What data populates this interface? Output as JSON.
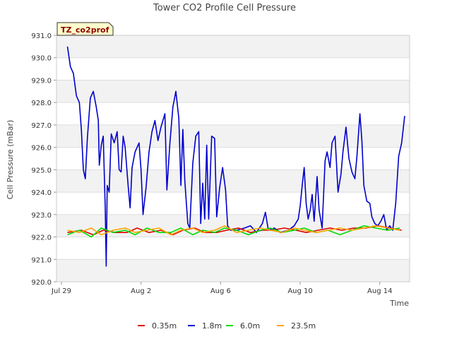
{
  "chart_data": {
    "type": "line",
    "title": "Tower CO2 Profile Cell Pressure",
    "tag": "TZ_co2prof",
    "xlabel": "Time",
    "ylabel": "Cell Pressure (mBar)",
    "ylim": [
      920.0,
      931.0
    ],
    "yticks": [
      "920.0",
      "921.0",
      "922.0",
      "923.0",
      "924.0",
      "925.0",
      "926.0",
      "927.0",
      "928.0",
      "929.0",
      "930.0",
      "931.0"
    ],
    "xlim_days": [
      -0.25,
      17.5
    ],
    "xticks": [
      {
        "label": "Jul 29",
        "day": 0
      },
      {
        "label": "Aug 2",
        "day": 4
      },
      {
        "label": "Aug 6",
        "day": 8
      },
      {
        "label": "Aug 10",
        "day": 12
      },
      {
        "label": "Aug 14",
        "day": 16
      }
    ],
    "grid": true,
    "legend_position": "bottom",
    "series": [
      {
        "name": "0.35m",
        "color": "#dd0000",
        "points": [
          [
            0.3,
            922.2
          ],
          [
            1.0,
            922.3
          ],
          [
            1.6,
            922.1
          ],
          [
            2.1,
            922.3
          ],
          [
            2.7,
            922.2
          ],
          [
            3.3,
            922.2
          ],
          [
            3.8,
            922.4
          ],
          [
            4.4,
            922.2
          ],
          [
            5.0,
            922.3
          ],
          [
            5.6,
            922.1
          ],
          [
            6.1,
            922.3
          ],
          [
            6.7,
            922.4
          ],
          [
            7.2,
            922.2
          ],
          [
            7.8,
            922.2
          ],
          [
            8.3,
            922.3
          ],
          [
            8.9,
            922.4
          ],
          [
            9.5,
            922.2
          ],
          [
            10.1,
            922.3
          ],
          [
            10.6,
            922.3
          ],
          [
            11.2,
            922.4
          ],
          [
            11.8,
            922.3
          ],
          [
            12.3,
            922.2
          ],
          [
            12.9,
            922.3
          ],
          [
            13.5,
            922.4
          ],
          [
            14.1,
            922.3
          ],
          [
            14.7,
            922.4
          ],
          [
            15.3,
            922.4
          ],
          [
            15.9,
            922.5
          ],
          [
            16.5,
            922.4
          ],
          [
            17.1,
            922.3
          ]
        ]
      },
      {
        "name": "1.8m",
        "color": "#0000cc",
        "points": [
          [
            0.3,
            930.5
          ],
          [
            0.45,
            929.6
          ],
          [
            0.6,
            929.3
          ],
          [
            0.75,
            928.3
          ],
          [
            0.9,
            928.0
          ],
          [
            1.0,
            926.8
          ],
          [
            1.1,
            925.0
          ],
          [
            1.2,
            924.6
          ],
          [
            1.3,
            926.4
          ],
          [
            1.45,
            928.2
          ],
          [
            1.6,
            928.5
          ],
          [
            1.75,
            927.8
          ],
          [
            1.85,
            927.2
          ],
          [
            1.9,
            925.2
          ],
          [
            2.0,
            926.1
          ],
          [
            2.1,
            926.5
          ],
          [
            2.2,
            923.3
          ],
          [
            2.25,
            920.7
          ],
          [
            2.3,
            924.3
          ],
          [
            2.4,
            924.0
          ],
          [
            2.5,
            926.6
          ],
          [
            2.65,
            926.2
          ],
          [
            2.8,
            926.7
          ],
          [
            2.9,
            925.0
          ],
          [
            3.0,
            924.9
          ],
          [
            3.1,
            926.5
          ],
          [
            3.2,
            926.0
          ],
          [
            3.35,
            924.3
          ],
          [
            3.45,
            923.3
          ],
          [
            3.55,
            925.1
          ],
          [
            3.7,
            925.8
          ],
          [
            3.9,
            926.2
          ],
          [
            4.0,
            925.0
          ],
          [
            4.1,
            923.0
          ],
          [
            4.25,
            924.2
          ],
          [
            4.4,
            925.8
          ],
          [
            4.55,
            926.7
          ],
          [
            4.7,
            927.2
          ],
          [
            4.85,
            926.3
          ],
          [
            5.0,
            926.9
          ],
          [
            5.2,
            927.5
          ],
          [
            5.3,
            924.1
          ],
          [
            5.45,
            926.2
          ],
          [
            5.6,
            927.8
          ],
          [
            5.75,
            928.5
          ],
          [
            5.9,
            927.3
          ],
          [
            6.0,
            924.3
          ],
          [
            6.1,
            926.8
          ],
          [
            6.2,
            924.5
          ],
          [
            6.35,
            922.6
          ],
          [
            6.45,
            922.4
          ],
          [
            6.6,
            925.3
          ],
          [
            6.75,
            926.5
          ],
          [
            6.9,
            926.7
          ],
          [
            7.0,
            922.6
          ],
          [
            7.1,
            924.4
          ],
          [
            7.2,
            922.8
          ],
          [
            7.3,
            926.1
          ],
          [
            7.4,
            922.8
          ],
          [
            7.55,
            926.5
          ],
          [
            7.7,
            926.4
          ],
          [
            7.8,
            922.9
          ],
          [
            7.95,
            924.2
          ],
          [
            8.1,
            925.1
          ],
          [
            8.25,
            924.1
          ],
          [
            8.35,
            922.5
          ],
          [
            8.5,
            922.3
          ],
          [
            8.8,
            922.3
          ],
          [
            9.2,
            922.4
          ],
          [
            9.5,
            922.5
          ],
          [
            9.8,
            922.2
          ],
          [
            10.1,
            922.6
          ],
          [
            10.25,
            923.1
          ],
          [
            10.4,
            922.3
          ],
          [
            10.7,
            922.4
          ],
          [
            11.0,
            922.2
          ],
          [
            11.4,
            922.3
          ],
          [
            11.7,
            922.5
          ],
          [
            11.9,
            922.8
          ],
          [
            12.0,
            923.4
          ],
          [
            12.1,
            924.3
          ],
          [
            12.2,
            925.1
          ],
          [
            12.3,
            923.5
          ],
          [
            12.4,
            922.8
          ],
          [
            12.5,
            923.2
          ],
          [
            12.6,
            923.9
          ],
          [
            12.7,
            922.7
          ],
          [
            12.85,
            924.7
          ],
          [
            12.95,
            923.2
          ],
          [
            13.1,
            922.4
          ],
          [
            13.25,
            925.4
          ],
          [
            13.35,
            925.8
          ],
          [
            13.5,
            925.1
          ],
          [
            13.6,
            926.2
          ],
          [
            13.75,
            926.5
          ],
          [
            13.9,
            924.0
          ],
          [
            14.05,
            924.8
          ],
          [
            14.15,
            925.8
          ],
          [
            14.3,
            926.9
          ],
          [
            14.45,
            925.5
          ],
          [
            14.6,
            924.9
          ],
          [
            14.75,
            924.6
          ],
          [
            14.85,
            925.6
          ],
          [
            15.0,
            927.5
          ],
          [
            15.1,
            926.3
          ],
          [
            15.2,
            924.3
          ],
          [
            15.35,
            923.6
          ],
          [
            15.5,
            923.5
          ],
          [
            15.6,
            922.9
          ],
          [
            15.75,
            922.6
          ],
          [
            15.9,
            922.5
          ],
          [
            16.05,
            922.7
          ],
          [
            16.2,
            923.0
          ],
          [
            16.35,
            922.3
          ],
          [
            16.5,
            922.5
          ],
          [
            16.65,
            922.3
          ],
          [
            16.8,
            923.5
          ],
          [
            16.95,
            925.6
          ],
          [
            17.1,
            926.2
          ],
          [
            17.25,
            927.4
          ]
        ]
      },
      {
        "name": "6.0m",
        "color": "#00dd00",
        "points": [
          [
            0.3,
            922.1
          ],
          [
            0.9,
            922.3
          ],
          [
            1.5,
            922.0
          ],
          [
            2.0,
            922.4
          ],
          [
            2.6,
            922.2
          ],
          [
            3.2,
            922.3
          ],
          [
            3.7,
            922.1
          ],
          [
            4.3,
            922.4
          ],
          [
            4.9,
            922.2
          ],
          [
            5.5,
            922.2
          ],
          [
            6.0,
            922.4
          ],
          [
            6.6,
            922.1
          ],
          [
            7.1,
            922.3
          ],
          [
            7.7,
            922.2
          ],
          [
            8.2,
            922.4
          ],
          [
            8.8,
            922.3
          ],
          [
            9.4,
            922.1
          ],
          [
            10.0,
            922.3
          ],
          [
            10.5,
            922.4
          ],
          [
            11.1,
            922.2
          ],
          [
            11.7,
            922.3
          ],
          [
            12.2,
            922.4
          ],
          [
            12.8,
            922.2
          ],
          [
            13.4,
            922.3
          ],
          [
            14.0,
            922.1
          ],
          [
            14.6,
            922.3
          ],
          [
            15.2,
            922.5
          ],
          [
            15.8,
            922.4
          ],
          [
            16.4,
            922.3
          ],
          [
            17.0,
            922.4
          ]
        ]
      },
      {
        "name": "23.5m",
        "color": "#ffa500",
        "points": [
          [
            0.3,
            922.3
          ],
          [
            0.9,
            922.2
          ],
          [
            1.5,
            922.4
          ],
          [
            2.0,
            922.1
          ],
          [
            2.6,
            922.3
          ],
          [
            3.2,
            922.4
          ],
          [
            3.7,
            922.2
          ],
          [
            4.3,
            922.3
          ],
          [
            4.9,
            922.4
          ],
          [
            5.5,
            922.1
          ],
          [
            6.0,
            922.3
          ],
          [
            6.6,
            922.4
          ],
          [
            7.1,
            922.2
          ],
          [
            7.7,
            922.3
          ],
          [
            8.2,
            922.5
          ],
          [
            8.8,
            922.2
          ],
          [
            9.4,
            922.3
          ],
          [
            10.0,
            922.4
          ],
          [
            10.5,
            922.3
          ],
          [
            11.1,
            922.2
          ],
          [
            11.7,
            922.4
          ],
          [
            12.2,
            922.3
          ],
          [
            12.8,
            922.2
          ],
          [
            13.4,
            922.3
          ],
          [
            14.0,
            922.4
          ],
          [
            14.6,
            922.3
          ],
          [
            15.2,
            922.4
          ],
          [
            15.8,
            922.5
          ],
          [
            16.4,
            922.4
          ],
          [
            17.0,
            922.3
          ]
        ]
      }
    ]
  }
}
